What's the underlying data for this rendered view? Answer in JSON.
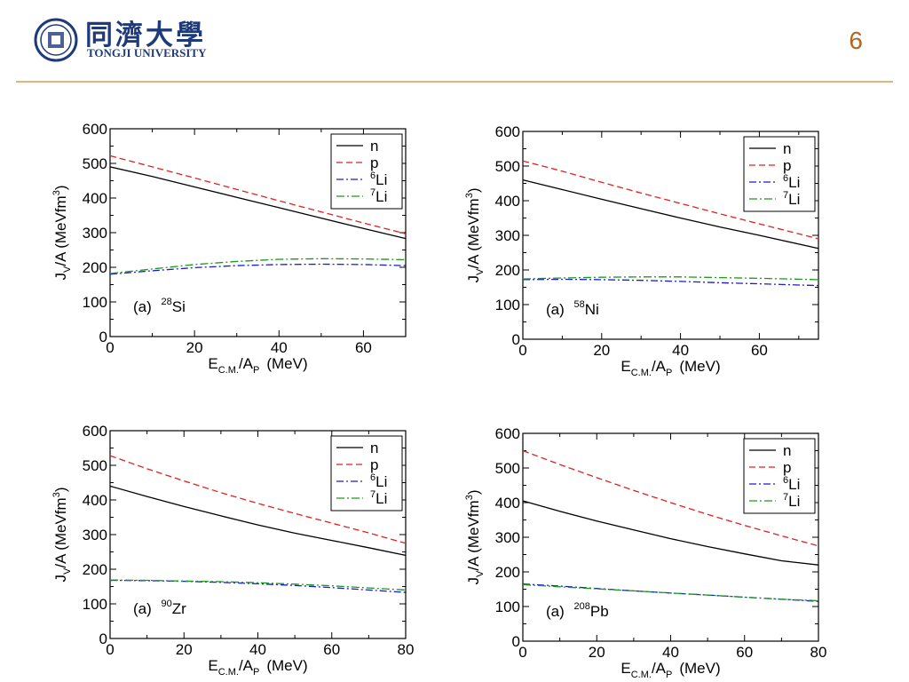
{
  "header": {
    "logo_cn": "同濟大學",
    "logo_en": "TONGJI UNIVERSITY",
    "page_number": "6"
  },
  "colors": {
    "n": "#000000",
    "p": "#e02020",
    "6Li": "#1a1ad8",
    "7Li": "#1a9a1a",
    "rule": "#e8b27c",
    "page_number": "#b5651d",
    "logo": "#1f3a7a"
  },
  "chart_data": [
    {
      "type": "line",
      "label": "(a)",
      "nucleus_mass": "28",
      "nucleus_symbol": "Si",
      "xlabel_main": "E",
      "xlabel_sub": "C.M.",
      "xlabel_mid": "/A",
      "xlabel_sub2": "P",
      "xlabel_unit": "(MeV)",
      "ylabel_main": "J",
      "ylabel_sub": "V",
      "ylabel_mid": "/A  (MeVfm",
      "ylabel_sup": "3",
      "ylabel_end": ")",
      "xlim": [
        0,
        70
      ],
      "ylim": [
        0,
        600
      ],
      "xticks": [
        0,
        20,
        40,
        60
      ],
      "yticks": [
        0,
        100,
        200,
        300,
        400,
        500,
        600
      ],
      "legend": "top-right",
      "series": [
        {
          "name": "n",
          "sup": "",
          "style": "solid",
          "x": [
            0,
            10,
            20,
            30,
            40,
            50,
            60,
            70
          ],
          "y": [
            490,
            462,
            432,
            402,
            372,
            342,
            312,
            283
          ]
        },
        {
          "name": "p",
          "sup": "",
          "style": "dash",
          "x": [
            0,
            10,
            20,
            30,
            40,
            50,
            60,
            70
          ],
          "y": [
            522,
            490,
            458,
            425,
            392,
            360,
            328,
            297
          ]
        },
        {
          "name": "Li",
          "sup": "6",
          "style": "dashdot",
          "x": [
            0,
            10,
            20,
            30,
            40,
            50,
            60,
            70
          ],
          "y": [
            180,
            190,
            199,
            205,
            208,
            209,
            208,
            205
          ]
        },
        {
          "name": "Li",
          "sup": "7",
          "style": "dashdot2",
          "x": [
            0,
            10,
            20,
            30,
            40,
            50,
            60,
            70
          ],
          "y": [
            182,
            195,
            208,
            217,
            223,
            225,
            224,
            222
          ]
        }
      ]
    },
    {
      "type": "line",
      "label": "(a)",
      "nucleus_mass": "58",
      "nucleus_symbol": "Ni",
      "xlabel_main": "E",
      "xlabel_sub": "C.M.",
      "xlabel_mid": "/A",
      "xlabel_sub2": "P",
      "xlabel_unit": "(MeV)",
      "ylabel_main": "J",
      "ylabel_sub": "V",
      "ylabel_mid": "/A  (MeVfm",
      "ylabel_sup": "3",
      "ylabel_end": ")",
      "xlim": [
        0,
        75
      ],
      "ylim": [
        0,
        600
      ],
      "xticks": [
        0,
        20,
        40,
        60
      ],
      "yticks": [
        0,
        100,
        200,
        300,
        400,
        500,
        600
      ],
      "legend": "top-right",
      "series": [
        {
          "name": "n",
          "sup": "",
          "style": "solid",
          "x": [
            0,
            10,
            20,
            30,
            40,
            50,
            60,
            75
          ],
          "y": [
            460,
            432,
            404,
            377,
            350,
            324,
            300,
            262
          ]
        },
        {
          "name": "p",
          "sup": "",
          "style": "dash",
          "x": [
            0,
            10,
            20,
            30,
            40,
            50,
            60,
            75
          ],
          "y": [
            515,
            485,
            453,
            422,
            392,
            362,
            333,
            290
          ]
        },
        {
          "name": "Li",
          "sup": "6",
          "style": "dashdot",
          "x": [
            0,
            10,
            20,
            30,
            40,
            50,
            60,
            75
          ],
          "y": [
            172,
            173,
            172,
            170,
            167,
            163,
            160,
            155
          ]
        },
        {
          "name": "Li",
          "sup": "7",
          "style": "dashdot2",
          "x": [
            0,
            10,
            20,
            30,
            40,
            50,
            60,
            75
          ],
          "y": [
            174,
            177,
            179,
            180,
            180,
            178,
            176,
            172
          ]
        }
      ]
    },
    {
      "type": "line",
      "label": "(a)",
      "nucleus_mass": "90",
      "nucleus_symbol": "Zr",
      "xlabel_main": "E",
      "xlabel_sub": "C.M.",
      "xlabel_mid": "/A",
      "xlabel_sub2": "P",
      "xlabel_unit": "(MeV)",
      "ylabel_main": "J",
      "ylabel_sub": "V",
      "ylabel_mid": "/A  (MeVfm",
      "ylabel_sup": "3",
      "ylabel_end": ")",
      "xlim": [
        0,
        80
      ],
      "ylim": [
        0,
        600
      ],
      "xticks": [
        0,
        20,
        40,
        60,
        80
      ],
      "yticks": [
        0,
        100,
        200,
        300,
        400,
        500,
        600
      ],
      "legend": "top-right",
      "series": [
        {
          "name": "n",
          "sup": "",
          "style": "solid",
          "x": [
            0,
            10,
            20,
            30,
            40,
            50,
            60,
            70,
            80
          ],
          "y": [
            440,
            410,
            381,
            354,
            328,
            304,
            283,
            262,
            240
          ]
        },
        {
          "name": "p",
          "sup": "",
          "style": "dash",
          "x": [
            0,
            10,
            20,
            30,
            40,
            50,
            60,
            70,
            80
          ],
          "y": [
            528,
            490,
            455,
            421,
            390,
            361,
            333,
            305,
            275
          ]
        },
        {
          "name": "Li",
          "sup": "6",
          "style": "dashdot",
          "x": [
            0,
            10,
            20,
            30,
            40,
            50,
            60,
            70,
            80
          ],
          "y": [
            168,
            167,
            165,
            162,
            158,
            153,
            147,
            140,
            133
          ]
        },
        {
          "name": "Li",
          "sup": "7",
          "style": "dashdot2",
          "x": [
            0,
            10,
            20,
            30,
            40,
            50,
            60,
            70,
            80
          ],
          "y": [
            169,
            168,
            166,
            164,
            161,
            157,
            152,
            146,
            140
          ]
        }
      ]
    },
    {
      "type": "line",
      "label": "(a)",
      "nucleus_mass": "208",
      "nucleus_symbol": "Pb",
      "xlabel_main": "E",
      "xlabel_sub": "C.M.",
      "xlabel_mid": "/A",
      "xlabel_sub2": "P",
      "xlabel_unit": "(MeV)",
      "ylabel_main": "J",
      "ylabel_sub": "V",
      "ylabel_mid": "/A  (MeVfm",
      "ylabel_sup": "3",
      "ylabel_end": ")",
      "xlim": [
        0,
        80
      ],
      "ylim": [
        0,
        600
      ],
      "xticks": [
        0,
        20,
        40,
        60,
        80
      ],
      "yticks": [
        0,
        100,
        200,
        300,
        400,
        500,
        600
      ],
      "legend": "top-right",
      "series": [
        {
          "name": "n",
          "sup": "",
          "style": "solid",
          "x": [
            0,
            10,
            20,
            30,
            40,
            50,
            60,
            70,
            80
          ],
          "y": [
            405,
            375,
            347,
            321,
            296,
            273,
            252,
            232,
            220
          ]
        },
        {
          "name": "p",
          "sup": "",
          "style": "dash",
          "x": [
            0,
            10,
            20,
            30,
            40,
            50,
            60,
            70,
            80
          ],
          "y": [
            550,
            510,
            472,
            435,
            400,
            366,
            334,
            304,
            275
          ]
        },
        {
          "name": "Li",
          "sup": "6",
          "style": "dashdot",
          "x": [
            0,
            10,
            20,
            30,
            40,
            50,
            60,
            70,
            80
          ],
          "y": [
            165,
            159,
            152,
            145,
            139,
            133,
            127,
            121,
            115
          ]
        },
        {
          "name": "Li",
          "sup": "7",
          "style": "dashdot2",
          "x": [
            0,
            10,
            20,
            30,
            40,
            50,
            60,
            70,
            80
          ],
          "y": [
            163,
            157,
            151,
            145,
            139,
            133,
            127,
            121,
            117
          ]
        }
      ]
    }
  ]
}
